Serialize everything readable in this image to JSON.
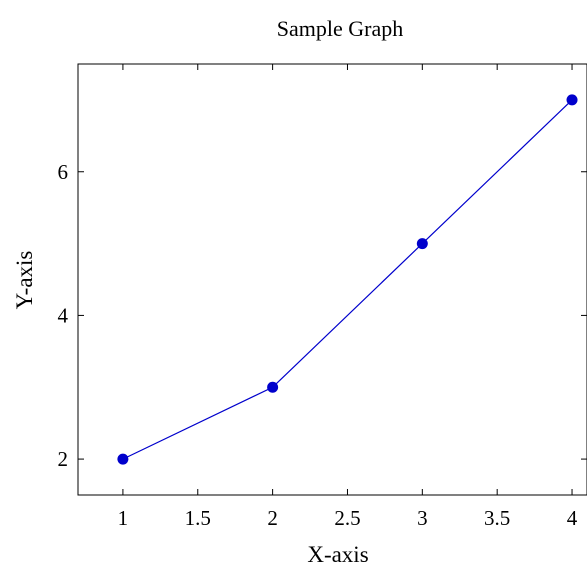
{
  "chart_data": {
    "type": "line",
    "title": "Sample Graph",
    "xlabel": "X-axis",
    "ylabel": "Y-axis",
    "xlim": [
      0.7,
      4.1
    ],
    "ylim": [
      1.5,
      7.5
    ],
    "xticks": [
      1,
      1.5,
      2,
      2.5,
      3,
      3.5,
      4
    ],
    "xtick_labels": [
      "1",
      "1.5",
      "2",
      "2.5",
      "3",
      "3.5",
      "4"
    ],
    "yticks": [
      2,
      4,
      6
    ],
    "ytick_labels": [
      "2",
      "4",
      "6"
    ],
    "grid": false,
    "series": [
      {
        "x": [
          1,
          2,
          3,
          4
        ],
        "y": [
          2,
          3,
          5,
          7
        ],
        "color": "#0000cc",
        "marker": "circle"
      }
    ]
  }
}
